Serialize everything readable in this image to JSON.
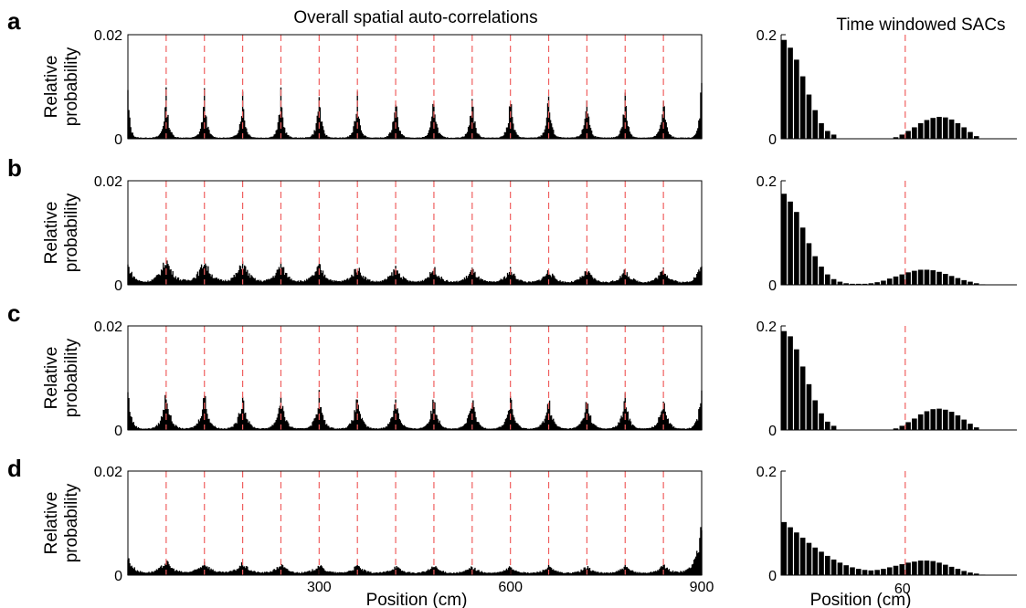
{
  "titles": {
    "left": "Overall spatial auto-correlations",
    "right": "Time windowed SACs"
  },
  "axis_text": {
    "ylabel_line1": "Relative",
    "ylabel_line2": "probability",
    "xlabel_left": "Position (cm)",
    "xlabel_right": "Position (cm)"
  },
  "chart_data": [
    {
      "panel": "a",
      "side": "left",
      "type": "bar",
      "title": "Overall spatial auto-correlations",
      "ylabel": "Relative probability",
      "xlabel": "",
      "xlim": [
        0,
        900
      ],
      "ylim": [
        0,
        0.02
      ],
      "yticks": [
        "0",
        "0.02"
      ],
      "xticks": [],
      "peak_positions": [
        60,
        120,
        180,
        240,
        300,
        360,
        420,
        480,
        540,
        600,
        660,
        720,
        780,
        840
      ],
      "reference_lines_x": [
        60,
        120,
        180,
        240,
        300,
        360,
        420,
        480,
        540,
        600,
        660,
        720,
        780,
        840
      ],
      "peak_heights": [
        0.0078,
        0.0078,
        0.0078,
        0.0078,
        0.0078,
        0.0078,
        0.0078,
        0.0078,
        0.0078,
        0.0078,
        0.0078,
        0.0078,
        0.0078,
        0.0078
      ],
      "edge_heights": [
        0.0082,
        0.0122
      ],
      "peak_sigma_cm": 4,
      "baseline": 0.0002
    },
    {
      "panel": "a",
      "side": "right",
      "type": "bar",
      "ylim": [
        0,
        0.2
      ],
      "yticks": [
        "0",
        "0.2"
      ],
      "xticks": [],
      "reference_line_x": 60,
      "x": [
        0,
        3,
        6,
        9,
        12,
        15,
        18,
        21,
        24,
        27,
        30,
        33,
        36,
        39,
        42,
        45,
        48,
        51,
        54,
        57,
        60,
        63,
        66,
        69,
        72,
        75,
        78,
        81,
        84,
        87,
        90,
        93,
        96,
        99,
        102,
        105,
        108,
        111
      ],
      "values": [
        0.19,
        0.175,
        0.152,
        0.12,
        0.085,
        0.055,
        0.03,
        0.015,
        0.008,
        0,
        0,
        0,
        0,
        0,
        0,
        0,
        0,
        0,
        0.003,
        0.008,
        0.015,
        0.022,
        0.03,
        0.036,
        0.04,
        0.042,
        0.041,
        0.037,
        0.03,
        0.022,
        0.013,
        0.005,
        0,
        0,
        0,
        0,
        0,
        0
      ]
    },
    {
      "panel": "b",
      "side": "left",
      "type": "bar",
      "title": "",
      "ylabel": "Relative probability",
      "xlabel": "",
      "xlim": [
        0,
        900
      ],
      "ylim": [
        0,
        0.02
      ],
      "yticks": [
        "0",
        "0.02"
      ],
      "xticks": [],
      "peak_positions": [
        60,
        120,
        180,
        240,
        300,
        360,
        420,
        480,
        540,
        600,
        660,
        720,
        780,
        840
      ],
      "reference_lines_x": [
        60,
        120,
        180,
        240,
        300,
        360,
        420,
        480,
        540,
        600,
        660,
        720,
        780,
        840
      ],
      "peak_heights": [
        0.0048,
        0.0045,
        0.0042,
        0.0038,
        0.0035,
        0.0033,
        0.0031,
        0.003,
        0.0028,
        0.0027,
        0.0026,
        0.0026,
        0.0025,
        0.0028
      ],
      "edge_heights": [
        0.0036,
        0.0038
      ],
      "peak_sigma_cm": 12,
      "baseline": 0.0001
    },
    {
      "panel": "b",
      "side": "right",
      "type": "bar",
      "ylim": [
        0,
        0.2
      ],
      "yticks": [
        "0",
        "0.2"
      ],
      "xticks": [],
      "reference_line_x": 60,
      "x": [
        0,
        3,
        6,
        9,
        12,
        15,
        18,
        21,
        24,
        27,
        30,
        33,
        36,
        39,
        42,
        45,
        48,
        51,
        54,
        57,
        60,
        63,
        66,
        69,
        72,
        75,
        78,
        81,
        84,
        87,
        90,
        93,
        96,
        99,
        102,
        105,
        108,
        111
      ],
      "values": [
        0.175,
        0.16,
        0.14,
        0.11,
        0.08,
        0.055,
        0.035,
        0.02,
        0.011,
        0.006,
        0.003,
        0.002,
        0.002,
        0.002,
        0.003,
        0.005,
        0.008,
        0.012,
        0.016,
        0.02,
        0.024,
        0.027,
        0.029,
        0.029,
        0.028,
        0.025,
        0.021,
        0.017,
        0.013,
        0.009,
        0.006,
        0.003,
        0.001,
        0,
        0,
        0,
        0,
        0
      ]
    },
    {
      "panel": "c",
      "side": "left",
      "type": "bar",
      "title": "",
      "ylabel": "Relative probability",
      "xlabel": "",
      "xlim": [
        0,
        900
      ],
      "ylim": [
        0,
        0.02
      ],
      "yticks": [
        "0",
        "0.02"
      ],
      "xticks": [],
      "peak_positions": [
        60,
        120,
        180,
        240,
        300,
        360,
        420,
        480,
        540,
        600,
        660,
        720,
        780,
        840
      ],
      "reference_lines_x": [
        60,
        120,
        180,
        240,
        300,
        360,
        420,
        480,
        540,
        600,
        660,
        720,
        780,
        840
      ],
      "peak_heights": [
        0.0072,
        0.0069,
        0.0066,
        0.0064,
        0.0062,
        0.0061,
        0.006,
        0.0059,
        0.0058,
        0.0058,
        0.0057,
        0.0057,
        0.0058,
        0.0062
      ],
      "edge_heights": [
        0.0072,
        0.0078
      ],
      "peak_sigma_cm": 6,
      "baseline": 0.0002
    },
    {
      "panel": "c",
      "side": "right",
      "type": "bar",
      "ylim": [
        0,
        0.2
      ],
      "yticks": [
        "0",
        "0.2"
      ],
      "xticks": [],
      "reference_line_x": 60,
      "x": [
        0,
        3,
        6,
        9,
        12,
        15,
        18,
        21,
        24,
        27,
        30,
        33,
        36,
        39,
        42,
        45,
        48,
        51,
        54,
        57,
        60,
        63,
        66,
        69,
        72,
        75,
        78,
        81,
        84,
        87,
        90,
        93,
        96,
        99,
        102,
        105,
        108,
        111
      ],
      "values": [
        0.19,
        0.18,
        0.155,
        0.122,
        0.088,
        0.057,
        0.032,
        0.016,
        0.008,
        0,
        0,
        0,
        0,
        0,
        0,
        0,
        0,
        0,
        0.003,
        0.008,
        0.015,
        0.022,
        0.03,
        0.036,
        0.04,
        0.041,
        0.039,
        0.035,
        0.028,
        0.02,
        0.012,
        0.005,
        0,
        0,
        0,
        0,
        0,
        0
      ]
    },
    {
      "panel": "d",
      "side": "left",
      "type": "bar",
      "title": "",
      "ylabel": "Relative probability",
      "xlabel": "Position (cm)",
      "xlim": [
        0,
        900
      ],
      "ylim": [
        0,
        0.02
      ],
      "yticks": [
        "0",
        "0.02"
      ],
      "xticks": [
        "300",
        "600",
        "900"
      ],
      "xtick_values": [
        300,
        600,
        900
      ],
      "peak_positions": [
        60,
        120,
        180,
        240,
        300,
        360,
        420,
        480,
        540,
        600,
        660,
        720,
        780,
        840
      ],
      "reference_lines_x": [
        60,
        120,
        180,
        240,
        300,
        360,
        420,
        480,
        540,
        600,
        660,
        720,
        780,
        840
      ],
      "peak_heights": [
        0.0024,
        0.0022,
        0.002,
        0.0018,
        0.0017,
        0.0016,
        0.0015,
        0.0015,
        0.0014,
        0.0014,
        0.0014,
        0.0014,
        0.0014,
        0.0016
      ],
      "edge_heights": [
        0.003,
        0.0085
      ],
      "peak_sigma_cm": 12,
      "baseline": 0.0002
    },
    {
      "panel": "d",
      "side": "right",
      "type": "bar",
      "ylim": [
        0,
        0.2
      ],
      "yticks": [
        "0",
        "0.2"
      ],
      "xticks": [
        "60"
      ],
      "xtick_values": [
        60
      ],
      "xlabel": "Position (cm)",
      "reference_line_x": 60,
      "x": [
        0,
        3,
        6,
        9,
        12,
        15,
        18,
        21,
        24,
        27,
        30,
        33,
        36,
        39,
        42,
        45,
        48,
        51,
        54,
        57,
        60,
        63,
        66,
        69,
        72,
        75,
        78,
        81,
        84,
        87,
        90,
        93,
        96,
        99,
        102,
        105,
        108,
        111
      ],
      "values": [
        0.102,
        0.092,
        0.082,
        0.072,
        0.062,
        0.053,
        0.045,
        0.037,
        0.03,
        0.024,
        0.019,
        0.015,
        0.012,
        0.01,
        0.009,
        0.01,
        0.012,
        0.015,
        0.018,
        0.021,
        0.024,
        0.026,
        0.028,
        0.028,
        0.027,
        0.024,
        0.02,
        0.016,
        0.012,
        0.008,
        0.005,
        0.003,
        0.001,
        0,
        0,
        0,
        0,
        0
      ]
    }
  ],
  "colors": {
    "reference_line": "#f06060",
    "bars": "#000000",
    "axes": "#000000"
  }
}
